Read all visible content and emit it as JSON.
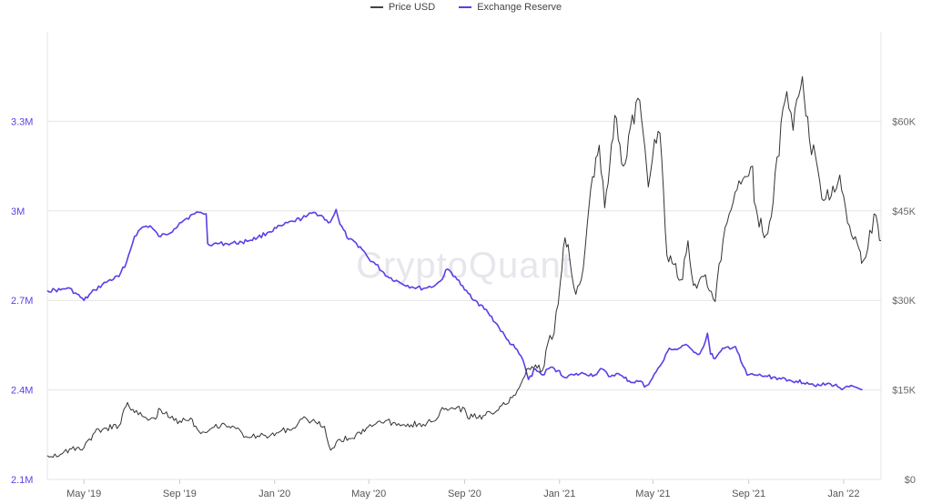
{
  "legend": {
    "items": [
      {
        "label": "Price USD",
        "color": "#444444"
      },
      {
        "label": "Exchange Reserve",
        "color": "#5b3ee6"
      }
    ]
  },
  "watermark": "CryptoQuant",
  "chart_data": {
    "type": "line",
    "x_axis": {
      "min": "2019-03-15",
      "max": "2022-02-18",
      "ticks": [
        {
          "date": "2019-05-01",
          "label": "May '19"
        },
        {
          "date": "2019-09-01",
          "label": "Sep '19"
        },
        {
          "date": "2020-01-01",
          "label": "Jan '20"
        },
        {
          "date": "2020-05-01",
          "label": "May '20"
        },
        {
          "date": "2020-09-01",
          "label": "Sep '20"
        },
        {
          "date": "2021-01-01",
          "label": "Jan '21"
        },
        {
          "date": "2021-05-01",
          "label": "May '21"
        },
        {
          "date": "2021-09-01",
          "label": "Sep '21"
        },
        {
          "date": "2022-01-01",
          "label": "Jan '22"
        }
      ]
    },
    "y_left": {
      "min": 2100000,
      "max": 3600000,
      "ticks": [
        {
          "value": 2100000,
          "label": "2.1M"
        },
        {
          "value": 2400000,
          "label": "2.4M"
        },
        {
          "value": 2700000,
          "label": "2.7M"
        },
        {
          "value": 3000000,
          "label": "3M"
        },
        {
          "value": 3300000,
          "label": "3.3M"
        }
      ],
      "color": "#5b3ee6"
    },
    "y_right": {
      "min": 0,
      "max": 75000,
      "ticks": [
        {
          "value": 0,
          "label": "$0"
        },
        {
          "value": 15000,
          "label": "$15K"
        },
        {
          "value": 30000,
          "label": "$30K"
        },
        {
          "value": 45000,
          "label": "$45K"
        },
        {
          "value": 60000,
          "label": "$60K"
        }
      ],
      "color": "#666666"
    },
    "grid": true,
    "legend_position": "top-center",
    "series": [
      {
        "name": "Exchange Reserve",
        "axis": "left",
        "color": "#5b3ee6",
        "points": [
          [
            "2019-03-15",
            2733000
          ],
          [
            "2019-04-01",
            2735000
          ],
          [
            "2019-04-10",
            2742000
          ],
          [
            "2019-04-20",
            2725000
          ],
          [
            "2019-05-01",
            2700000
          ],
          [
            "2019-05-15",
            2735000
          ],
          [
            "2019-06-01",
            2765000
          ],
          [
            "2019-06-15",
            2780000
          ],
          [
            "2019-06-25",
            2830000
          ],
          [
            "2019-07-05",
            2915000
          ],
          [
            "2019-07-15",
            2945000
          ],
          [
            "2019-07-25",
            2950000
          ],
          [
            "2019-08-05",
            2915000
          ],
          [
            "2019-08-15",
            2920000
          ],
          [
            "2019-08-25",
            2940000
          ],
          [
            "2019-09-01",
            2960000
          ],
          [
            "2019-09-10",
            2975000
          ],
          [
            "2019-09-20",
            2990000
          ],
          [
            "2019-09-28",
            2995000
          ],
          [
            "2019-10-05",
            2990000
          ],
          [
            "2019-10-07",
            2890000
          ],
          [
            "2019-10-15",
            2890000
          ],
          [
            "2019-11-01",
            2890000
          ],
          [
            "2019-11-20",
            2895000
          ],
          [
            "2019-12-10",
            2910000
          ],
          [
            "2019-12-25",
            2930000
          ],
          [
            "2020-01-10",
            2950000
          ],
          [
            "2020-01-25",
            2965000
          ],
          [
            "2020-02-10",
            2980000
          ],
          [
            "2020-02-20",
            2995000
          ],
          [
            "2020-03-01",
            2985000
          ],
          [
            "2020-03-10",
            2960000
          ],
          [
            "2020-03-15",
            2975000
          ],
          [
            "2020-03-20",
            3005000
          ],
          [
            "2020-03-25",
            2955000
          ],
          [
            "2020-04-05",
            2905000
          ],
          [
            "2020-04-20",
            2880000
          ],
          [
            "2020-05-01",
            2840000
          ],
          [
            "2020-05-10",
            2820000
          ],
          [
            "2020-05-25",
            2780000
          ],
          [
            "2020-06-10",
            2760000
          ],
          [
            "2020-06-25",
            2745000
          ],
          [
            "2020-07-10",
            2740000
          ],
          [
            "2020-07-25",
            2750000
          ],
          [
            "2020-08-01",
            2765000
          ],
          [
            "2020-08-10",
            2805000
          ],
          [
            "2020-08-20",
            2780000
          ],
          [
            "2020-09-01",
            2735000
          ],
          [
            "2020-09-15",
            2700000
          ],
          [
            "2020-10-01",
            2660000
          ],
          [
            "2020-10-15",
            2610000
          ],
          [
            "2020-10-25",
            2570000
          ],
          [
            "2020-11-05",
            2540000
          ],
          [
            "2020-11-15",
            2500000
          ],
          [
            "2020-11-22",
            2435000
          ],
          [
            "2020-12-01",
            2470000
          ],
          [
            "2020-12-10",
            2450000
          ],
          [
            "2020-12-20",
            2475000
          ],
          [
            "2020-12-30",
            2465000
          ],
          [
            "2021-01-05",
            2445000
          ],
          [
            "2021-01-20",
            2450000
          ],
          [
            "2021-02-01",
            2455000
          ],
          [
            "2021-02-15",
            2450000
          ],
          [
            "2021-02-25",
            2470000
          ],
          [
            "2021-03-05",
            2445000
          ],
          [
            "2021-03-15",
            2455000
          ],
          [
            "2021-03-25",
            2440000
          ],
          [
            "2021-04-05",
            2425000
          ],
          [
            "2021-04-15",
            2430000
          ],
          [
            "2021-04-20",
            2410000
          ],
          [
            "2021-04-28",
            2430000
          ],
          [
            "2021-05-05",
            2460000
          ],
          [
            "2021-05-15",
            2500000
          ],
          [
            "2021-05-22",
            2540000
          ],
          [
            "2021-06-01",
            2535000
          ],
          [
            "2021-06-10",
            2550000
          ],
          [
            "2021-06-20",
            2535000
          ],
          [
            "2021-06-30",
            2520000
          ],
          [
            "2021-07-05",
            2545000
          ],
          [
            "2021-07-10",
            2590000
          ],
          [
            "2021-07-14",
            2520000
          ],
          [
            "2021-07-20",
            2505000
          ],
          [
            "2021-08-01",
            2540000
          ],
          [
            "2021-08-15",
            2545000
          ],
          [
            "2021-08-22",
            2495000
          ],
          [
            "2021-08-30",
            2450000
          ],
          [
            "2021-09-10",
            2450000
          ],
          [
            "2021-09-25",
            2445000
          ],
          [
            "2021-10-10",
            2440000
          ],
          [
            "2021-10-20",
            2430000
          ],
          [
            "2021-11-01",
            2430000
          ],
          [
            "2021-11-15",
            2425000
          ],
          [
            "2021-12-01",
            2415000
          ],
          [
            "2021-12-15",
            2420000
          ],
          [
            "2022-01-01",
            2405000
          ],
          [
            "2022-01-15",
            2410000
          ],
          [
            "2022-01-25",
            2400000
          ]
        ]
      },
      {
        "name": "Price USD",
        "axis": "right",
        "color": "#333333",
        "points": [
          [
            "2019-03-15",
            4000
          ],
          [
            "2019-04-01",
            4200
          ],
          [
            "2019-04-15",
            5100
          ],
          [
            "2019-05-01",
            5300
          ],
          [
            "2019-05-15",
            7900
          ],
          [
            "2019-05-30",
            8600
          ],
          [
            "2019-06-15",
            9000
          ],
          [
            "2019-06-26",
            12900
          ],
          [
            "2019-07-05",
            11200
          ],
          [
            "2019-07-15",
            10600
          ],
          [
            "2019-08-01",
            10100
          ],
          [
            "2019-08-05",
            11900
          ],
          [
            "2019-08-20",
            10300
          ],
          [
            "2019-09-01",
            9800
          ],
          [
            "2019-09-15",
            10300
          ],
          [
            "2019-09-26",
            8000
          ],
          [
            "2019-10-10",
            8400
          ],
          [
            "2019-10-25",
            9300
          ],
          [
            "2019-11-10",
            8800
          ],
          [
            "2019-11-25",
            7200
          ],
          [
            "2019-12-10",
            7300
          ],
          [
            "2019-12-25",
            7200
          ],
          [
            "2020-01-10",
            8200
          ],
          [
            "2020-01-25",
            8600
          ],
          [
            "2020-02-10",
            10300
          ],
          [
            "2020-02-25",
            9300
          ],
          [
            "2020-03-05",
            8900
          ],
          [
            "2020-03-13",
            4900
          ],
          [
            "2020-03-25",
            6700
          ],
          [
            "2020-04-10",
            6900
          ],
          [
            "2020-04-30",
            8800
          ],
          [
            "2020-05-15",
            9800
          ],
          [
            "2020-06-01",
            9500
          ],
          [
            "2020-06-20",
            9300
          ],
          [
            "2020-07-10",
            9250
          ],
          [
            "2020-07-25",
            9800
          ],
          [
            "2020-08-01",
            11500
          ],
          [
            "2020-08-20",
            11800
          ],
          [
            "2020-09-01",
            11900
          ],
          [
            "2020-09-05",
            10300
          ],
          [
            "2020-09-25",
            10700
          ],
          [
            "2020-10-10",
            11200
          ],
          [
            "2020-10-21",
            12900
          ],
          [
            "2020-11-01",
            13700
          ],
          [
            "2020-11-10",
            15300
          ],
          [
            "2020-11-20",
            18500
          ],
          [
            "2020-12-01",
            19200
          ],
          [
            "2020-12-10",
            18300
          ],
          [
            "2020-12-17",
            22800
          ],
          [
            "2020-12-25",
            24500
          ],
          [
            "2021-01-02",
            33000
          ],
          [
            "2021-01-08",
            40500
          ],
          [
            "2021-01-14",
            37000
          ],
          [
            "2021-01-22",
            31000
          ],
          [
            "2021-01-29",
            33500
          ],
          [
            "2021-02-08",
            46000
          ],
          [
            "2021-02-21",
            56000
          ],
          [
            "2021-02-28",
            45500
          ],
          [
            "2021-03-13",
            61000
          ],
          [
            "2021-03-24",
            52500
          ],
          [
            "2021-04-02",
            59000
          ],
          [
            "2021-04-14",
            63500
          ],
          [
            "2021-04-25",
            49000
          ],
          [
            "2021-05-03",
            57000
          ],
          [
            "2021-05-10",
            58000
          ],
          [
            "2021-05-19",
            37500
          ],
          [
            "2021-05-28",
            36000
          ],
          [
            "2021-06-08",
            33500
          ],
          [
            "2021-06-15",
            40000
          ],
          [
            "2021-06-22",
            32500
          ],
          [
            "2021-07-05",
            34000
          ],
          [
            "2021-07-20",
            29800
          ],
          [
            "2021-07-30",
            40000
          ],
          [
            "2021-08-07",
            44500
          ],
          [
            "2021-08-22",
            49500
          ],
          [
            "2021-09-06",
            52500
          ],
          [
            "2021-09-08",
            46500
          ],
          [
            "2021-09-21",
            40500
          ],
          [
            "2021-09-30",
            44000
          ],
          [
            "2021-10-05",
            51500
          ],
          [
            "2021-10-20",
            65000
          ],
          [
            "2021-10-28",
            58500
          ],
          [
            "2021-11-09",
            67500
          ],
          [
            "2021-11-18",
            57000
          ],
          [
            "2021-11-26",
            54000
          ],
          [
            "2021-12-04",
            47000
          ],
          [
            "2021-12-16",
            47500
          ],
          [
            "2021-12-27",
            51000
          ],
          [
            "2022-01-06",
            43000
          ],
          [
            "2022-01-21",
            38500
          ],
          [
            "2022-01-24",
            36200
          ],
          [
            "2022-02-01",
            38700
          ],
          [
            "2022-02-09",
            44500
          ],
          [
            "2022-02-14",
            42500
          ],
          [
            "2022-02-18",
            40000
          ]
        ]
      }
    ]
  }
}
